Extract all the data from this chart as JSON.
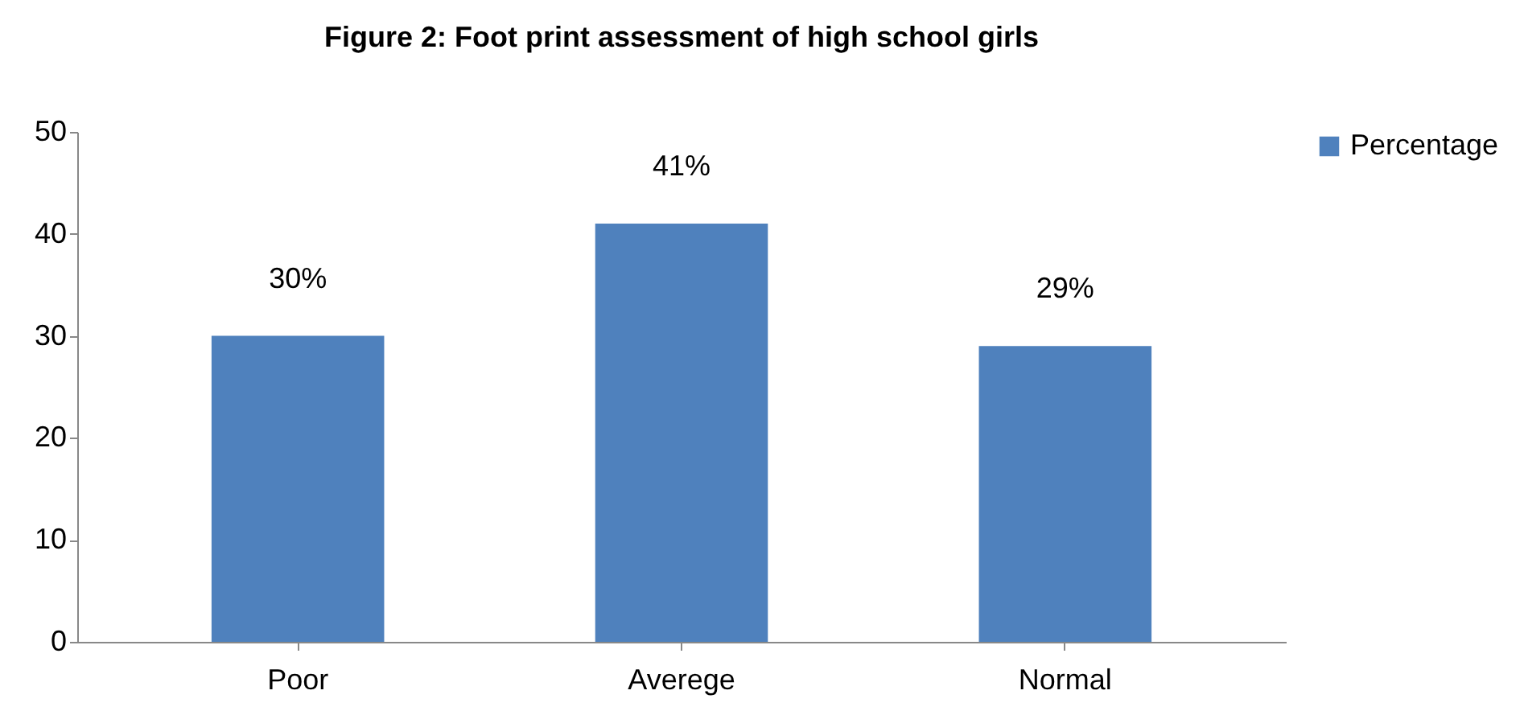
{
  "chart_data": {
    "type": "bar",
    "title": "Figure 2: Foot print assessment of high school girls",
    "categories": [
      "Poor",
      "Averege",
      "Normal"
    ],
    "series": [
      {
        "name": "Percentage",
        "color": "#4f81bd",
        "values": [
          30,
          41,
          29
        ],
        "value_labels": [
          "30%",
          "41%",
          "29%"
        ]
      }
    ],
    "ylim": [
      0,
      50
    ],
    "yticks": [
      0,
      10,
      20,
      30,
      40,
      50
    ],
    "grid": false,
    "legend": "right"
  }
}
